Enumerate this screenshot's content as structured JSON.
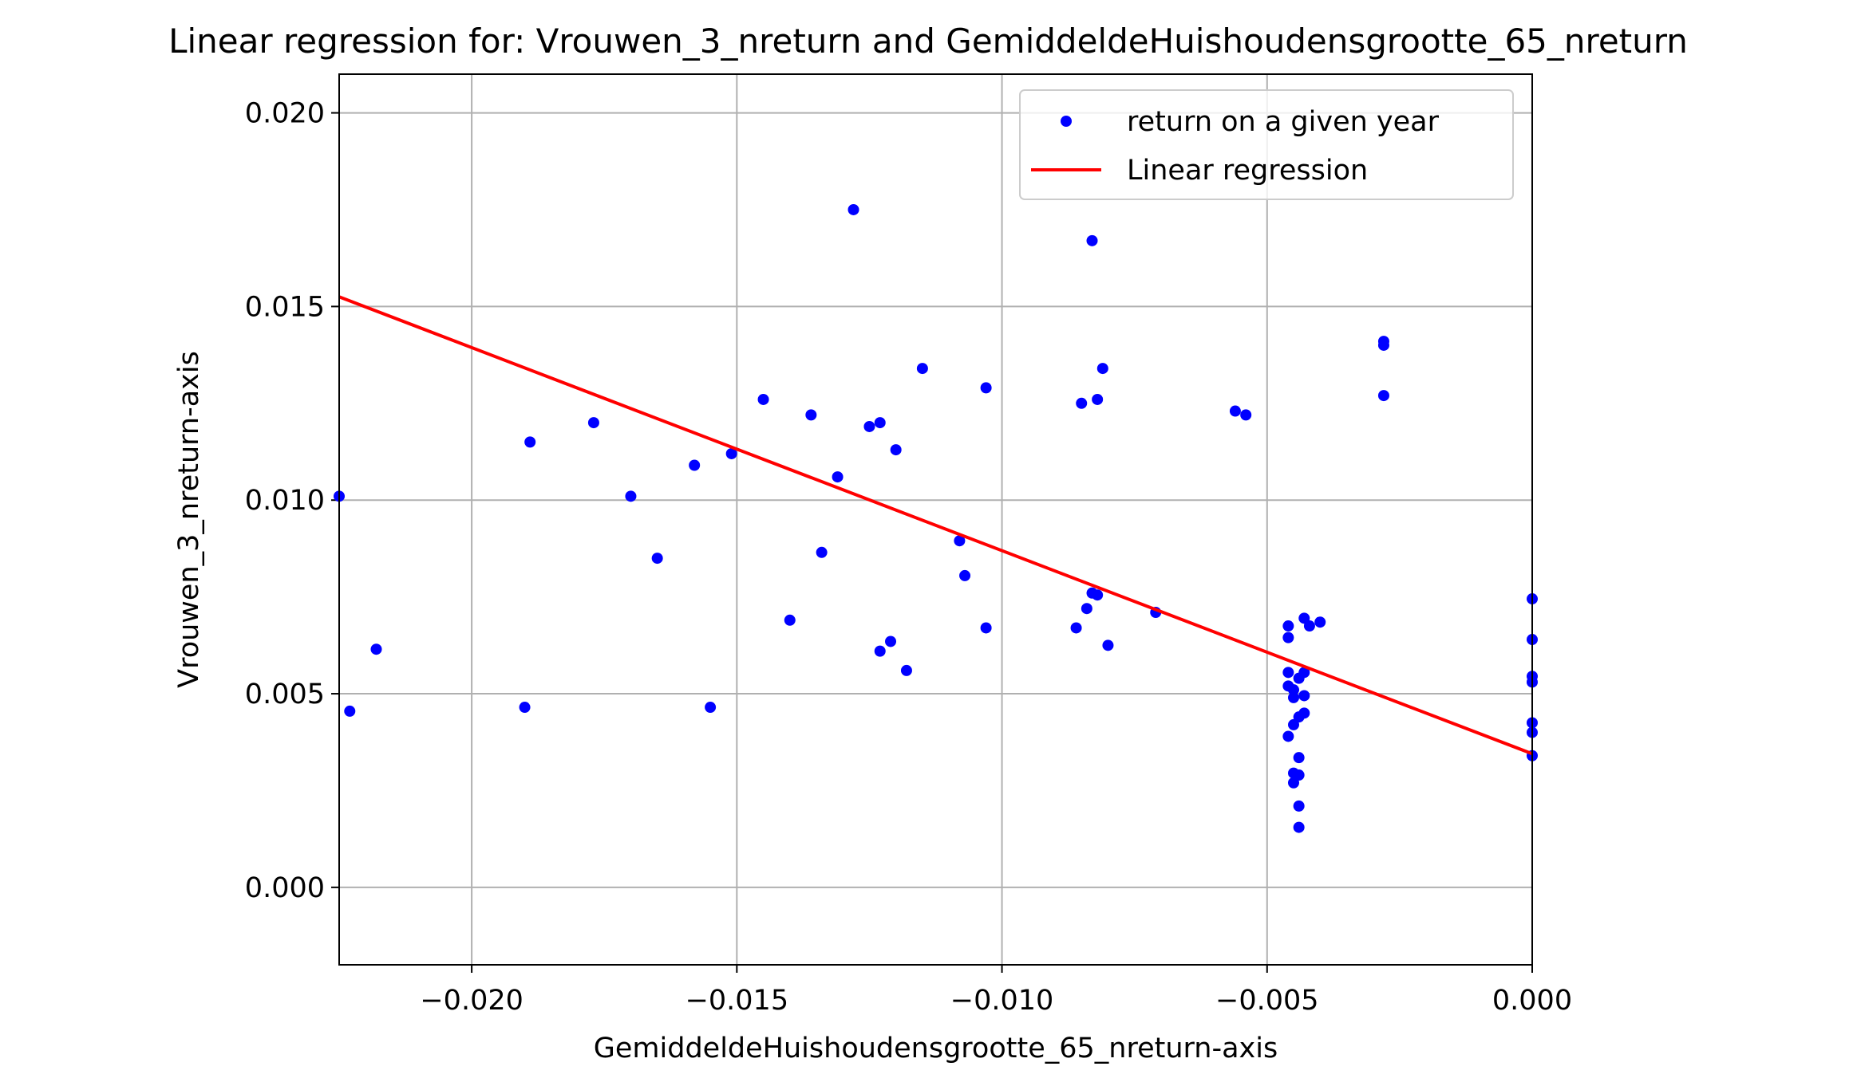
{
  "chart_data": {
    "type": "scatter",
    "title": "Linear regression for: Vrouwen_3_nreturn and GemiddeldeHuishoudensgrootte_65_nreturn",
    "xlabel": "GemiddeldeHuishoudensgrootte_65_nreturn-axis",
    "ylabel": "Vrouwen_3_nreturn-axis",
    "xlim": [
      -0.0225,
      0.0
    ],
    "ylim": [
      -0.002,
      0.021
    ],
    "grid": true,
    "legend_position": "top-right",
    "x_ticks": [
      -0.02,
      -0.015,
      -0.01,
      -0.005,
      0.0
    ],
    "x_tick_labels": [
      "−0.020",
      "−0.015",
      "−0.010",
      "−0.005",
      "0.000"
    ],
    "y_ticks": [
      0.0,
      0.005,
      0.01,
      0.015,
      0.02
    ],
    "y_tick_labels": [
      "0.000",
      "0.005",
      "0.010",
      "0.015",
      "0.020"
    ],
    "series": [
      {
        "name": "return on a given year",
        "kind": "scatter",
        "color": "#0000ff",
        "points": [
          [
            -0.0225,
            0.0101
          ],
          [
            -0.0223,
            0.00455
          ],
          [
            -0.0218,
            0.00615
          ],
          [
            -0.019,
            0.00465
          ],
          [
            -0.0189,
            0.0115
          ],
          [
            -0.0177,
            0.012
          ],
          [
            -0.017,
            0.0101
          ],
          [
            -0.0165,
            0.0085
          ],
          [
            -0.0158,
            0.0109
          ],
          [
            -0.0155,
            0.00465
          ],
          [
            -0.0151,
            0.0112
          ],
          [
            -0.0145,
            0.0126
          ],
          [
            -0.014,
            0.0069
          ],
          [
            -0.0136,
            0.0122
          ],
          [
            -0.0134,
            0.00865
          ],
          [
            -0.0131,
            0.0106
          ],
          [
            -0.0128,
            0.0175
          ],
          [
            -0.0125,
            0.0119
          ],
          [
            -0.0123,
            0.012
          ],
          [
            -0.0123,
            0.0061
          ],
          [
            -0.0121,
            0.00635
          ],
          [
            -0.012,
            0.0113
          ],
          [
            -0.0118,
            0.0056
          ],
          [
            -0.0115,
            0.0134
          ],
          [
            -0.0108,
            0.00895
          ],
          [
            -0.0107,
            0.00805
          ],
          [
            -0.0103,
            0.0129
          ],
          [
            -0.0103,
            0.0067
          ],
          [
            -0.0086,
            0.0067
          ],
          [
            -0.0085,
            0.0125
          ],
          [
            -0.0084,
            0.0072
          ],
          [
            -0.0083,
            0.0167
          ],
          [
            -0.0083,
            0.0076
          ],
          [
            -0.0082,
            0.0126
          ],
          [
            -0.0082,
            0.00755
          ],
          [
            -0.0081,
            0.0134
          ],
          [
            -0.008,
            0.00625
          ],
          [
            -0.0071,
            0.0071
          ],
          [
            -0.0056,
            0.0123
          ],
          [
            -0.0054,
            0.0122
          ],
          [
            -0.0046,
            0.00675
          ],
          [
            -0.0046,
            0.00645
          ],
          [
            -0.0046,
            0.00555
          ],
          [
            -0.0046,
            0.0052
          ],
          [
            -0.0046,
            0.0039
          ],
          [
            -0.0045,
            0.00295
          ],
          [
            -0.0045,
            0.0027
          ],
          [
            -0.0045,
            0.0051
          ],
          [
            -0.0045,
            0.0049
          ],
          [
            -0.0045,
            0.0042
          ],
          [
            -0.0044,
            0.0044
          ],
          [
            -0.0044,
            0.0029
          ],
          [
            -0.0044,
            0.00155
          ],
          [
            -0.0044,
            0.0021
          ],
          [
            -0.0044,
            0.00335
          ],
          [
            -0.0044,
            0.0054
          ],
          [
            -0.0043,
            0.00695
          ],
          [
            -0.0043,
            0.00555
          ],
          [
            -0.0043,
            0.00495
          ],
          [
            -0.0043,
            0.0045
          ],
          [
            -0.0042,
            0.00675
          ],
          [
            -0.004,
            0.00685
          ],
          [
            -0.0028,
            0.0141
          ],
          [
            -0.0028,
            0.014
          ],
          [
            -0.0028,
            0.0127
          ],
          [
            0.0,
            0.00745
          ],
          [
            0.0,
            0.0064
          ],
          [
            0.0,
            0.00545
          ],
          [
            0.0,
            0.0053
          ],
          [
            0.0,
            0.00425
          ],
          [
            0.0,
            0.004
          ],
          [
            0.0,
            0.0034
          ]
        ]
      },
      {
        "name": "Linear regression",
        "kind": "line",
        "color": "#ff0000",
        "points": [
          [
            -0.0225,
            0.01525
          ],
          [
            0.0,
            0.00345
          ]
        ]
      }
    ]
  }
}
